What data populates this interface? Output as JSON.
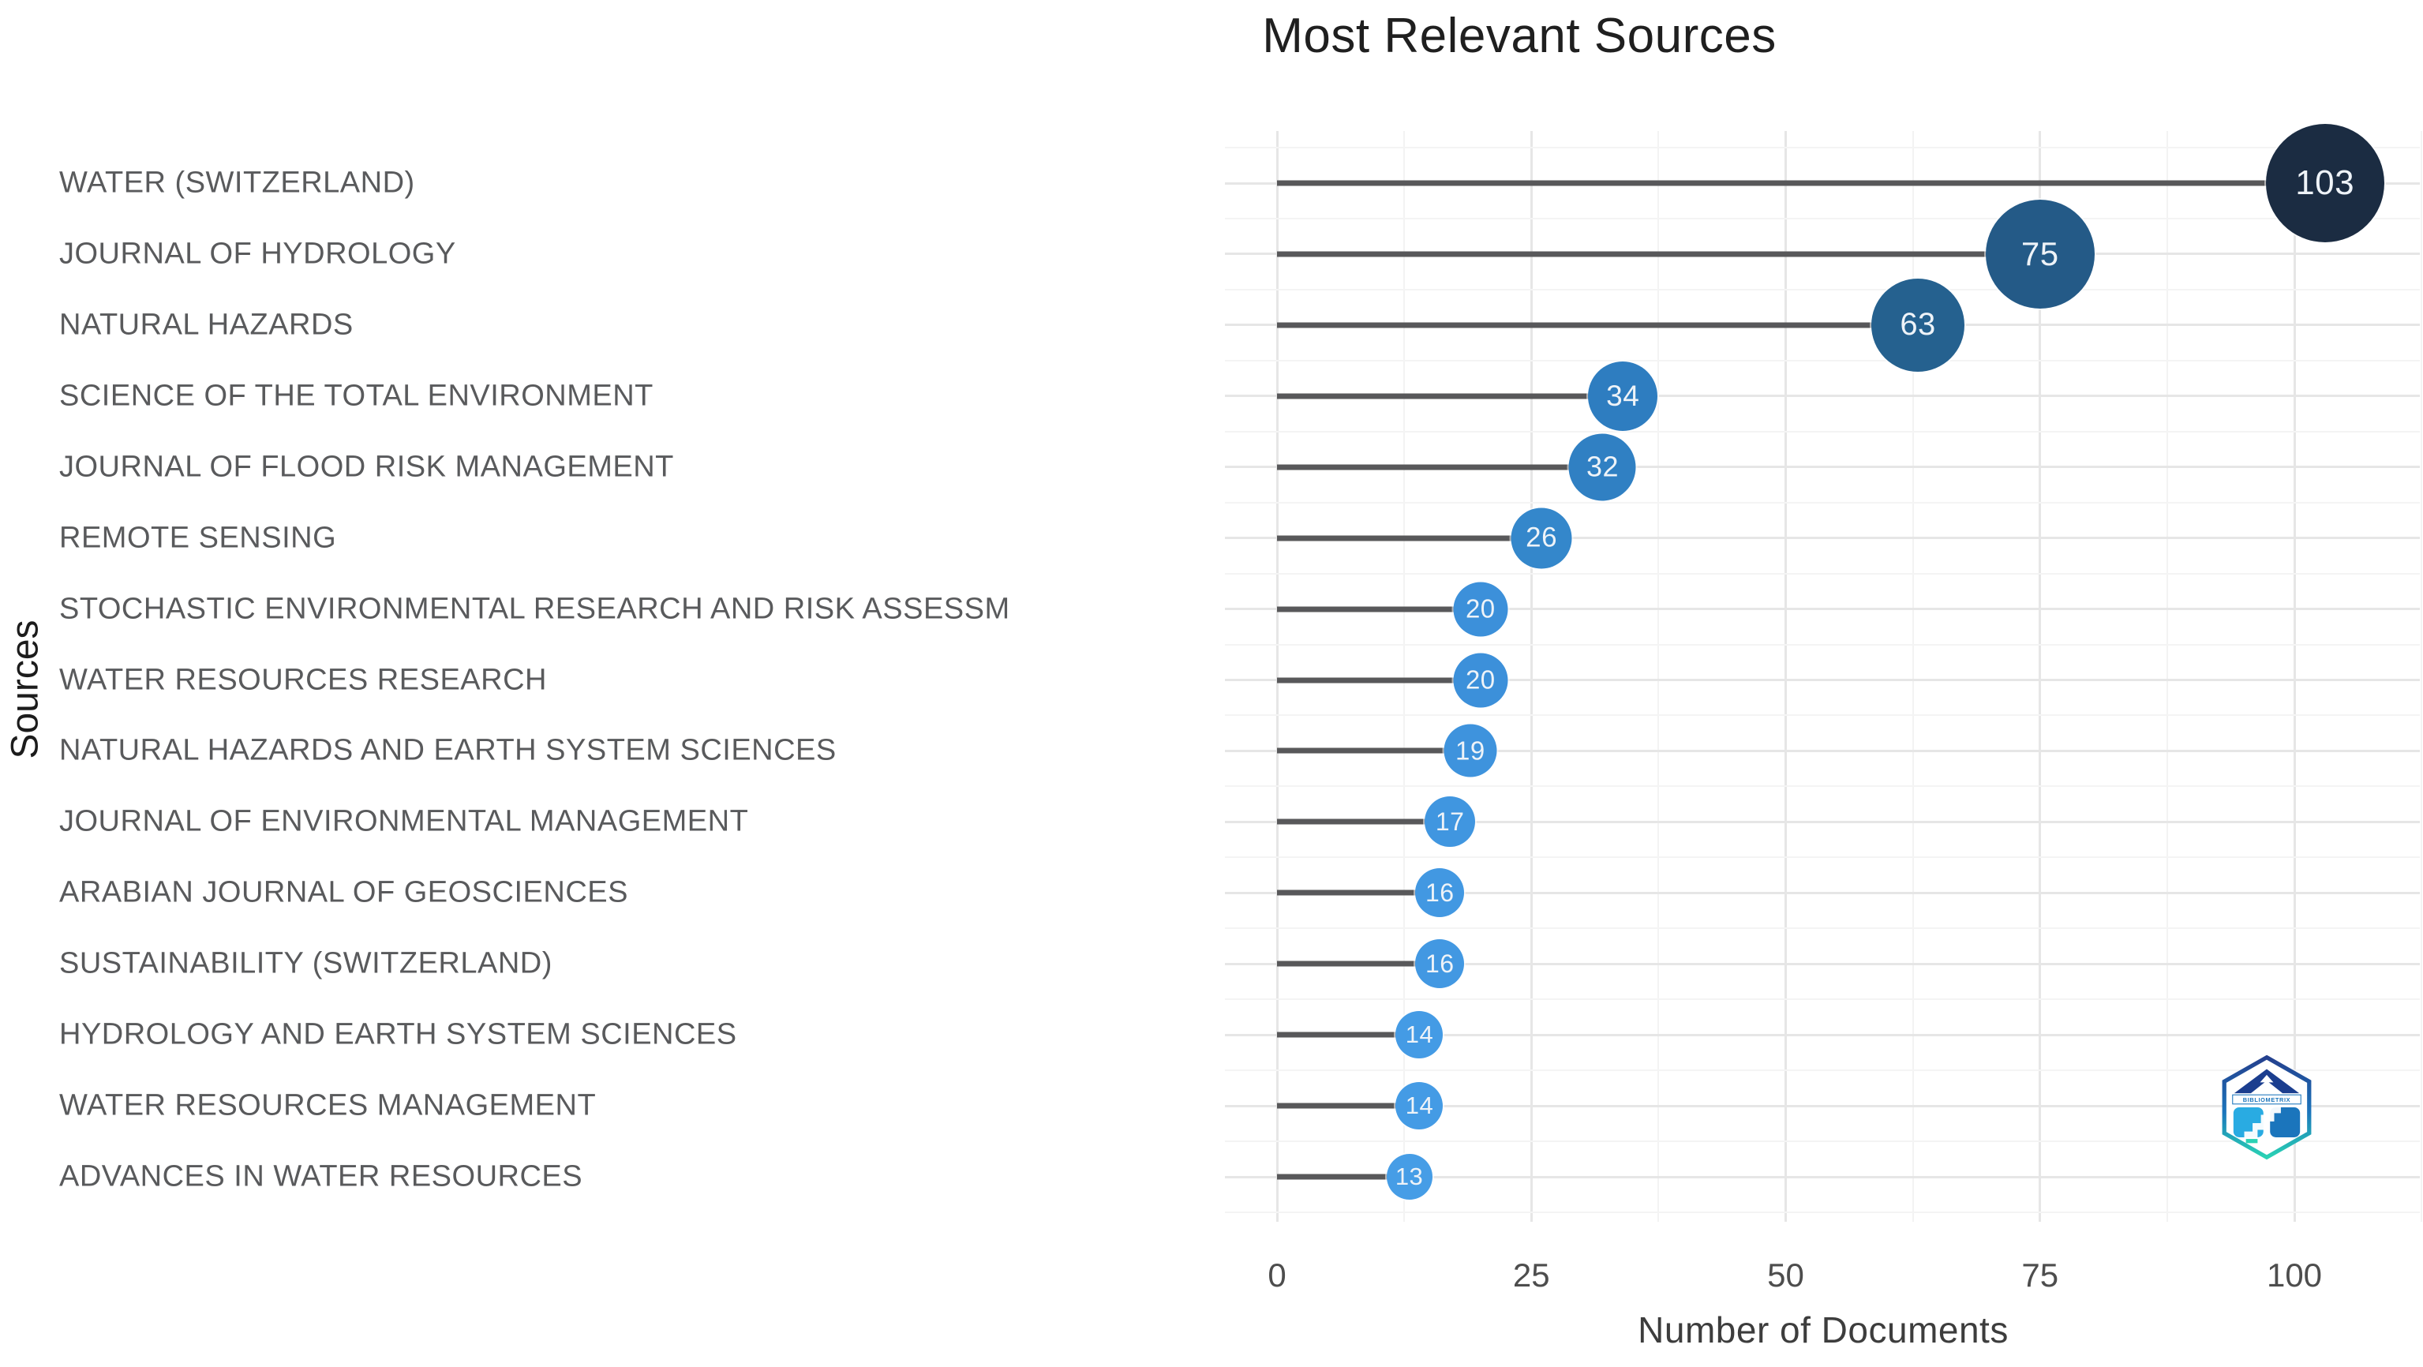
{
  "title": "Most Relevant Sources",
  "x_axis": {
    "label": "Number of Documents",
    "ticks": [
      0,
      25,
      50,
      75,
      100
    ]
  },
  "y_axis": {
    "label": "Sources"
  },
  "watermark": {
    "label": "BIBLIOMETRIX"
  },
  "colors": {
    "stem": "#58585a",
    "grid_major": "#e6e6e6",
    "grid_minor": "#f3f3f3",
    "category_text": "#595a5c",
    "dot_text": "#eef3f8"
  },
  "chart_data": {
    "type": "lollipop",
    "title": "Most Relevant Sources",
    "xlabel": "Number of Documents",
    "ylabel": "Sources",
    "xlim": [
      0,
      112.5
    ],
    "grid": true,
    "categories": [
      "WATER (SWITZERLAND)",
      "JOURNAL OF HYDROLOGY",
      "NATURAL HAZARDS",
      "SCIENCE OF THE TOTAL ENVIRONMENT",
      "JOURNAL OF FLOOD RISK MANAGEMENT",
      "REMOTE SENSING",
      "STOCHASTIC ENVIRONMENTAL RESEARCH AND RISK ASSESSM",
      "WATER RESOURCES RESEARCH",
      "NATURAL HAZARDS AND EARTH SYSTEM SCIENCES",
      "JOURNAL OF ENVIRONMENTAL MANAGEMENT",
      "ARABIAN JOURNAL OF GEOSCIENCES",
      "SUSTAINABILITY (SWITZERLAND)",
      "HYDROLOGY AND EARTH SYSTEM SCIENCES",
      "WATER RESOURCES MANAGEMENT",
      "ADVANCES IN WATER RESOURCES"
    ],
    "values": [
      103,
      75,
      63,
      34,
      32,
      26,
      20,
      20,
      19,
      17,
      16,
      16,
      14,
      14,
      13
    ],
    "points": [
      {
        "label": "WATER (SWITZERLAND)",
        "value": 103,
        "color": "#1b2c42",
        "size": 150,
        "font": 44
      },
      {
        "label": "JOURNAL OF HYDROLOGY",
        "value": 75,
        "color": "#245a87",
        "size": 138,
        "font": 42
      },
      {
        "label": "NATURAL HAZARDS",
        "value": 63,
        "color": "#25618f",
        "size": 118,
        "font": 40
      },
      {
        "label": "SCIENCE OF THE TOTAL ENVIRONMENT",
        "value": 34,
        "color": "#2e7dc0",
        "size": 88,
        "font": 37
      },
      {
        "label": "JOURNAL OF FLOOD RISK MANAGEMENT",
        "value": 32,
        "color": "#3080c3",
        "size": 85,
        "font": 36
      },
      {
        "label": "REMOTE SENSING",
        "value": 26,
        "color": "#3487cb",
        "size": 77,
        "font": 35
      },
      {
        "label": "STOCHASTIC ENVIRONMENTAL RESEARCH AND RISK ASSESSM",
        "value": 20,
        "color": "#3c90da",
        "size": 69,
        "font": 33
      },
      {
        "label": "WATER RESOURCES RESEARCH",
        "value": 20,
        "color": "#3c90da",
        "size": 69,
        "font": 33
      },
      {
        "label": "NATURAL HAZARDS AND EARTH SYSTEM SCIENCES",
        "value": 19,
        "color": "#3e93dd",
        "size": 67,
        "font": 33
      },
      {
        "label": "JOURNAL OF ENVIRONMENTAL MANAGEMENT",
        "value": 17,
        "color": "#4096e0",
        "size": 64,
        "font": 32
      },
      {
        "label": "ARABIAN JOURNAL OF GEOSCIENCES",
        "value": 16,
        "color": "#4298e2",
        "size": 62,
        "font": 32
      },
      {
        "label": "SUSTAINABILITY (SWITZERLAND)",
        "value": 16,
        "color": "#4298e2",
        "size": 62,
        "font": 32
      },
      {
        "label": "HYDROLOGY AND EARTH SYSTEM SCIENCES",
        "value": 14,
        "color": "#449be5",
        "size": 60,
        "font": 31
      },
      {
        "label": "WATER RESOURCES MANAGEMENT",
        "value": 14,
        "color": "#449be5",
        "size": 60,
        "font": 31
      },
      {
        "label": "ADVANCES IN WATER RESOURCES",
        "value": 13,
        "color": "#469de6",
        "size": 58,
        "font": 31
      }
    ]
  }
}
